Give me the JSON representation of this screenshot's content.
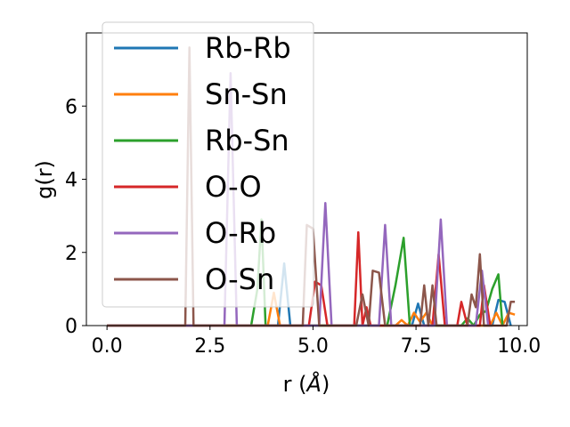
{
  "chart_data": {
    "type": "line",
    "xlabel_main": "r (",
    "xlabel_unit": "Å",
    "xlabel_close": ")",
    "ylabel": "g(r)",
    "xlim": [
      -0.5,
      10.2
    ],
    "ylim": [
      0,
      8.0
    ],
    "xticks": [
      0.0,
      2.5,
      5.0,
      7.5,
      10.0
    ],
    "xtick_labels": [
      "0.0",
      "2.5",
      "5.0",
      "7.5",
      "10.0"
    ],
    "yticks": [
      0,
      2,
      4,
      6
    ],
    "ytick_labels": [
      "0",
      "2",
      "4",
      "6"
    ],
    "grid": false,
    "legend_position": "top-left",
    "series": [
      {
        "name": "Rb-Rb",
        "color": "#1f77b4",
        "points": [
          [
            0,
            0
          ],
          [
            4.15,
            0
          ],
          [
            4.3,
            1.7
          ],
          [
            4.45,
            0
          ],
          [
            7.4,
            0
          ],
          [
            7.55,
            0.6
          ],
          [
            7.7,
            0
          ],
          [
            9.35,
            0
          ],
          [
            9.5,
            0.7
          ],
          [
            9.65,
            0.65
          ],
          [
            9.8,
            0
          ]
        ]
      },
      {
        "name": "Sn-Sn",
        "color": "#ff7f0e",
        "points": [
          [
            0,
            0
          ],
          [
            3.9,
            0
          ],
          [
            4.05,
            0.9
          ],
          [
            4.2,
            0
          ],
          [
            7.0,
            0
          ],
          [
            7.15,
            0.15
          ],
          [
            7.3,
            0
          ],
          [
            7.45,
            0.35
          ],
          [
            7.6,
            0.1
          ],
          [
            7.75,
            0.35
          ],
          [
            7.9,
            0
          ],
          [
            9.3,
            0
          ],
          [
            9.45,
            0.35
          ],
          [
            9.6,
            0
          ],
          [
            9.75,
            0.35
          ],
          [
            9.9,
            0.3
          ]
        ]
      },
      {
        "name": "Rb-Sn",
        "color": "#2ca02c",
        "points": [
          [
            0,
            0
          ],
          [
            3.5,
            0
          ],
          [
            3.65,
            1.0
          ],
          [
            3.75,
            2.9
          ],
          [
            3.85,
            0
          ],
          [
            6.8,
            0
          ],
          [
            7.0,
            1.1
          ],
          [
            7.2,
            2.4
          ],
          [
            7.35,
            0
          ],
          [
            8.6,
            0
          ],
          [
            8.75,
            0.2
          ],
          [
            8.9,
            0
          ],
          [
            9.05,
            0.3
          ],
          [
            9.2,
            0.4
          ],
          [
            9.35,
            1.0
          ],
          [
            9.5,
            1.4
          ],
          [
            9.6,
            0
          ]
        ]
      },
      {
        "name": "O-O",
        "color": "#d62728",
        "points": [
          [
            0,
            0
          ],
          [
            4.9,
            0
          ],
          [
            5.05,
            1.2
          ],
          [
            5.2,
            1.1
          ],
          [
            5.35,
            0
          ],
          [
            6.0,
            0
          ],
          [
            6.1,
            2.55
          ],
          [
            6.2,
            0
          ],
          [
            6.3,
            0.5
          ],
          [
            6.4,
            0
          ],
          [
            7.9,
            0
          ],
          [
            8.05,
            1.95
          ],
          [
            8.2,
            0
          ],
          [
            8.5,
            0
          ],
          [
            8.6,
            0.65
          ],
          [
            8.75,
            0
          ],
          [
            9.05,
            0
          ],
          [
            9.15,
            1.1
          ],
          [
            9.3,
            0
          ]
        ]
      },
      {
        "name": "O-Rb",
        "color": "#9467bd",
        "points": [
          [
            0,
            0
          ],
          [
            2.85,
            0
          ],
          [
            3.0,
            6.9
          ],
          [
            3.15,
            0
          ],
          [
            5.15,
            0
          ],
          [
            5.3,
            3.35
          ],
          [
            5.45,
            0
          ],
          [
            6.6,
            0
          ],
          [
            6.75,
            2.75
          ],
          [
            6.9,
            0
          ],
          [
            7.95,
            0
          ],
          [
            8.1,
            2.9
          ],
          [
            8.25,
            0
          ],
          [
            8.95,
            0
          ],
          [
            9.1,
            1.5
          ],
          [
            9.25,
            0
          ]
        ]
      },
      {
        "name": "O-Sn",
        "color": "#8c564b",
        "points": [
          [
            0,
            0
          ],
          [
            1.9,
            0
          ],
          [
            2.0,
            7.6
          ],
          [
            2.1,
            0
          ],
          [
            4.75,
            0
          ],
          [
            4.85,
            2.75
          ],
          [
            5.0,
            2.65
          ],
          [
            5.15,
            0
          ],
          [
            6.05,
            0
          ],
          [
            6.2,
            0.85
          ],
          [
            6.35,
            0
          ],
          [
            6.45,
            1.5
          ],
          [
            6.6,
            1.45
          ],
          [
            6.75,
            0
          ],
          [
            7.6,
            0
          ],
          [
            7.7,
            1.1
          ],
          [
            7.8,
            0
          ],
          [
            7.9,
            1.1
          ],
          [
            8.0,
            0
          ],
          [
            8.75,
            0
          ],
          [
            8.85,
            0.85
          ],
          [
            8.95,
            0.5
          ],
          [
            9.05,
            1.95
          ],
          [
            9.15,
            0
          ],
          [
            9.7,
            0
          ],
          [
            9.8,
            0.65
          ],
          [
            9.9,
            0.65
          ]
        ]
      }
    ]
  }
}
